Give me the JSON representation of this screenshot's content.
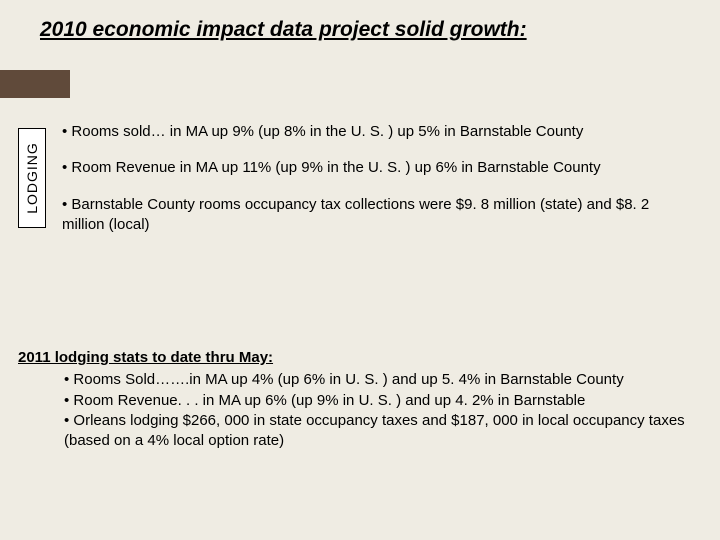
{
  "title": "2010 economic impact data project solid growth:",
  "sidebar_label": "LODGING",
  "bullets": {
    "b1": "• Rooms sold… in MA up 9%  (up 8% in the U. S. ) up 5% in Barnstable County",
    "b2": "• Room Revenue in MA  up 11% (up 9% in the U. S. ) up 6% in Barnstable County",
    "b3": "• Barnstable County  rooms occupancy tax collections were $9. 8 million (state) and $8. 2 million (local)"
  },
  "subsection": {
    "heading": "2011 lodging stats to date thru May:",
    "items": {
      "i1": "• Rooms Sold…….in MA up 4% (up 6% in U. S. ) and up 5. 4% in Barnstable        County",
      "i2": "• Room Revenue. . . in MA up 6% (up 9% in U. S. ) and up 4. 2% in Barnstable",
      "i3": "• Orleans  lodging  $266, 000 in state occupancy taxes and $187, 000 in local occupancy taxes (based on a 4% local option rate)"
    }
  },
  "colors": {
    "background": "#efece3",
    "accent": "#604a3a",
    "text": "#000000",
    "sidebar_bg": "#ffffff"
  }
}
